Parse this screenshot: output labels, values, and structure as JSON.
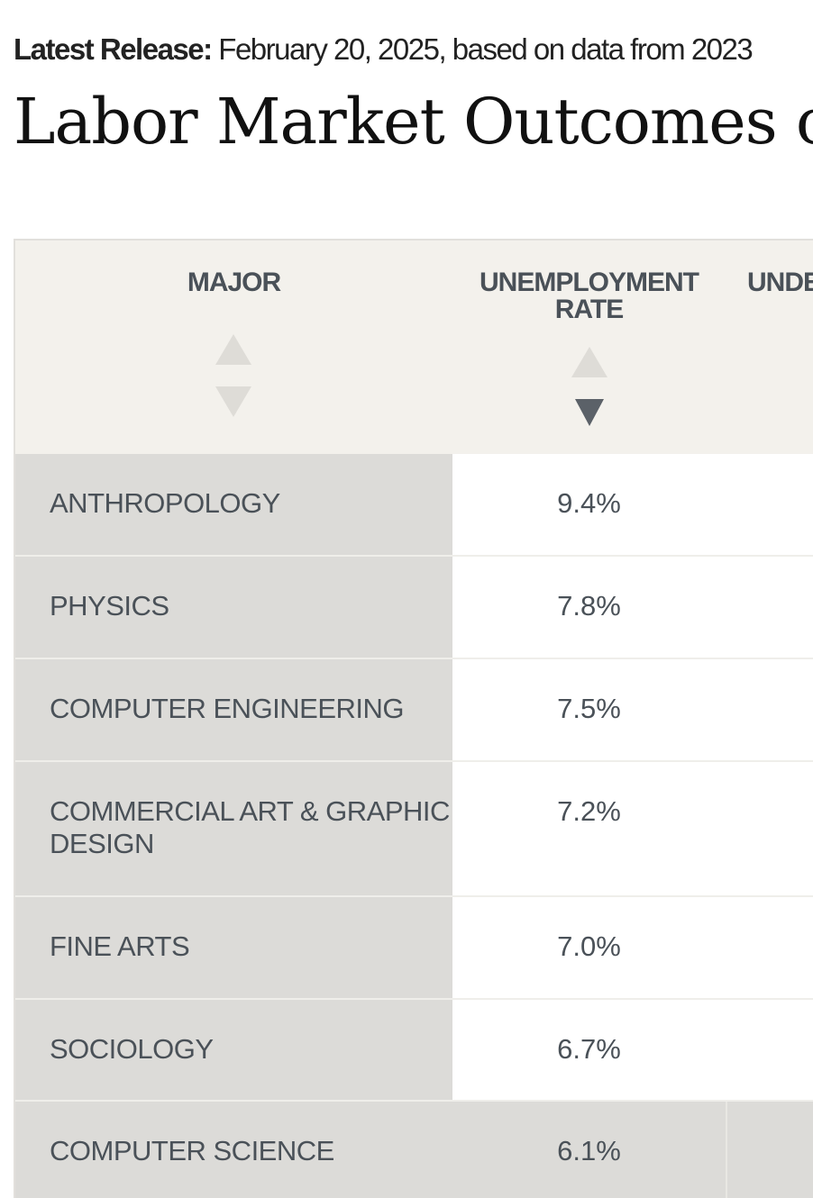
{
  "header": {
    "release_label": "Latest Release:",
    "release_text": "February 20, 2025, based on data from 2023",
    "title": "Labor Market Outcomes o"
  },
  "table": {
    "columns": [
      "MAJOR",
      "UNEMPLOYMENT RATE",
      "UNDE"
    ],
    "rows": [
      [
        "ANTHROPOLOGY",
        "9.4%"
      ],
      [
        "PHYSICS",
        "7.8%"
      ],
      [
        "COMPUTER ENGINEERING",
        "7.5%"
      ],
      [
        "COMMERCIAL ART & GRAPHIC DESIGN",
        "7.2%"
      ],
      [
        "FINE ARTS",
        "7.0%"
      ],
      [
        "SOCIOLOGY",
        "6.7%"
      ],
      [
        "COMPUTER SCIENCE",
        "6.1%"
      ]
    ]
  }
}
